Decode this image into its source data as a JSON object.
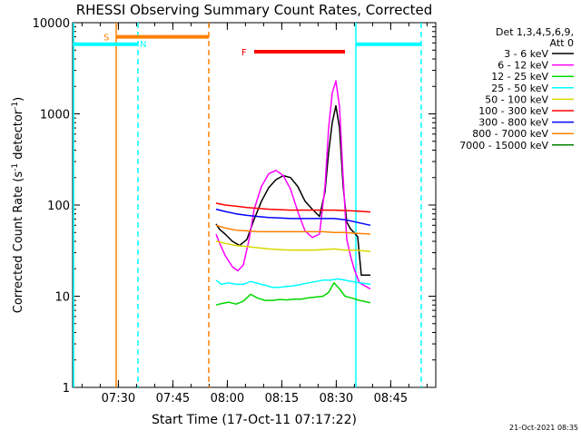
{
  "chart_data": {
    "type": "line",
    "title": "RHESSI Observing Summary Count Rates, Corrected",
    "xlabel": "Start Time (17-Oct-11 07:17:22)",
    "ylabel": "Corrected Count Rate (s⁻¹ detector⁻¹)",
    "ylabel_parts": [
      "Corrected Count Rate (s",
      "-1",
      " detector",
      "-1",
      ")"
    ],
    "ylog": true,
    "ylim": [
      1,
      10000
    ],
    "xlim_minutes": [
      0,
      100
    ],
    "x_tick_labels": [
      "07:30",
      "07:45",
      "08:00",
      "08:15",
      "08:30",
      "08:45"
    ],
    "x_tick_minutes": [
      12.6,
      27.6,
      42.6,
      57.6,
      72.6,
      87.6
    ],
    "y_tick_labels": [
      "1",
      "10",
      "100",
      "1000",
      "10000"
    ],
    "y_tick_values": [
      1,
      10,
      100,
      1000,
      10000
    ],
    "legend": {
      "placement": "right",
      "header": [
        "Det 1,3,4,5,6,9,",
        "Att 0"
      ],
      "entries": [
        {
          "label": "3 - 6 keV",
          "color": "#000000"
        },
        {
          "label": "6 - 12 keV",
          "color": "#ff00ff"
        },
        {
          "label": "12 - 25 keV",
          "color": "#00d800"
        },
        {
          "label": "25 - 50 keV",
          "color": "#00ffff"
        },
        {
          "label": "50 - 100 keV",
          "color": "#d8d800"
        },
        {
          "label": "100 - 300 keV",
          "color": "#ff0000"
        },
        {
          "label": "300 - 800 keV",
          "color": "#0000ff"
        },
        {
          "label": "800 - 7000 keV",
          "color": "#ff8000"
        },
        {
          "label": "7000 - 15000 keV",
          "color": "#008000"
        }
      ]
    },
    "flag_bars": [
      {
        "label": "S",
        "x_start": 12,
        "x_end": 37.5,
        "y": 7000,
        "color": "#ff8000"
      },
      {
        "label": "N",
        "x_start": 0,
        "x_end": 18,
        "y": 5800,
        "color": "#00ffff"
      },
      {
        "label": "N",
        "x_start": 78,
        "x_end": 96,
        "y": 5800,
        "color": "#00ffff"
      },
      {
        "label": "F",
        "x_start": 50,
        "x_end": 75,
        "y": 4800,
        "color": "#ff0000"
      }
    ],
    "vertical_markers": [
      {
        "x": 12,
        "color": "#ff8000",
        "style": "solid"
      },
      {
        "x": 18,
        "color": "#00ffff",
        "style": "dashed"
      },
      {
        "x": 37.5,
        "color": "#ff8000",
        "style": "dashed"
      },
      {
        "x": 78,
        "color": "#00ffff",
        "style": "solid"
      },
      {
        "x": 96,
        "color": "#00ffff",
        "style": "dashed"
      }
    ],
    "series": [
      {
        "name": "3 - 6 keV",
        "color": "#000000",
        "x": [
          39.5,
          40.5,
          42,
          44,
          46,
          48,
          50,
          52,
          54,
          56,
          58,
          60,
          62,
          64,
          66,
          68,
          69.5,
          70.5,
          71.5,
          72.5,
          73.5,
          74.5,
          75.5,
          76.5,
          77.5,
          78.5,
          79.5,
          80.5,
          81.5,
          82
        ],
        "y": [
          62,
          54,
          48,
          40,
          36,
          42,
          70,
          110,
          155,
          190,
          210,
          200,
          160,
          110,
          90,
          75,
          140,
          380,
          800,
          1230,
          700,
          160,
          65,
          55,
          50,
          45,
          17,
          17,
          17,
          17
        ]
      },
      {
        "name": "6 - 12 keV",
        "color": "#ff00ff",
        "x": [
          39.5,
          40.5,
          42,
          44,
          45.5,
          47,
          48.5,
          50,
          52,
          54,
          56,
          58,
          60,
          62,
          64,
          66,
          68,
          69.5,
          70.5,
          71.5,
          72.5,
          73.5,
          74.5,
          75.5,
          76.5,
          77.5,
          79,
          82
        ],
        "y": [
          48,
          38,
          28,
          21,
          19,
          22,
          40,
          90,
          160,
          220,
          240,
          210,
          150,
          85,
          52,
          44,
          48,
          160,
          700,
          1700,
          2300,
          1200,
          200,
          42,
          28,
          20,
          14,
          12
        ]
      },
      {
        "name": "12 - 25 keV",
        "color": "#00d800",
        "x": [
          39.5,
          41,
          43,
          45,
          47,
          49,
          51,
          53,
          55,
          57,
          59,
          61,
          63,
          65,
          67,
          69,
          70.5,
          72,
          73.5,
          75,
          77,
          79,
          82
        ],
        "y": [
          8,
          8.3,
          8.6,
          8.2,
          8.8,
          10.5,
          9.5,
          9,
          9,
          9.2,
          9.1,
          9.3,
          9.3,
          9.6,
          9.8,
          10,
          11,
          14,
          12,
          10,
          9.5,
          9,
          8.5
        ]
      },
      {
        "name": "25 - 50 keV",
        "color": "#00ffff",
        "x": [
          39.5,
          41,
          43,
          45,
          47,
          49,
          51,
          53,
          55,
          57,
          59,
          61,
          63,
          65,
          67,
          69,
          71,
          73,
          75,
          77,
          79,
          82
        ],
        "y": [
          15,
          13.5,
          14,
          13.5,
          13.5,
          14.5,
          13.8,
          13.2,
          12.5,
          12.5,
          12.8,
          13,
          13.5,
          14,
          14.5,
          15,
          15,
          15.5,
          15,
          14.5,
          14,
          13.5
        ]
      },
      {
        "name": "50 - 100 keV",
        "color": "#d8d800",
        "x": [
          39.5,
          42,
          45,
          48,
          51,
          54,
          57,
          60,
          63,
          66,
          69,
          72,
          75,
          78,
          82
        ],
        "y": [
          40,
          38,
          36,
          35,
          34,
          33,
          32.5,
          32,
          32,
          32,
          32.5,
          33,
          32,
          32,
          31
        ]
      },
      {
        "name": "100 - 300 keV",
        "color": "#ff0000",
        "x": [
          39.5,
          42,
          45,
          48,
          51,
          54,
          57,
          60,
          63,
          66,
          69,
          72,
          75,
          78,
          82
        ],
        "y": [
          105,
          100,
          97,
          94,
          92,
          90,
          89,
          88,
          88,
          88,
          88,
          88,
          87,
          86,
          84
        ]
      },
      {
        "name": "300 - 800 keV",
        "color": "#0000ff",
        "x": [
          39.5,
          42,
          45,
          48,
          51,
          54,
          57,
          60,
          63,
          66,
          69,
          72,
          75,
          78,
          82
        ],
        "y": [
          90,
          85,
          80,
          77,
          75,
          73,
          72,
          71,
          71,
          71,
          71,
          71,
          69,
          65,
          60
        ]
      },
      {
        "name": "800 - 7000 keV",
        "color": "#ff8000",
        "x": [
          39.5,
          42,
          45,
          48,
          51,
          54,
          57,
          60,
          63,
          66,
          69,
          72,
          75,
          78,
          82
        ],
        "y": [
          60,
          56,
          53,
          52,
          51,
          51,
          51,
          51,
          51,
          51,
          51,
          50,
          50,
          49,
          48
        ]
      },
      {
        "name": "7000 - 15000 keV",
        "color": "#008000",
        "x": [],
        "y": []
      }
    ]
  },
  "footer": {
    "timestamp": "21-Oct-2021 08:35"
  }
}
